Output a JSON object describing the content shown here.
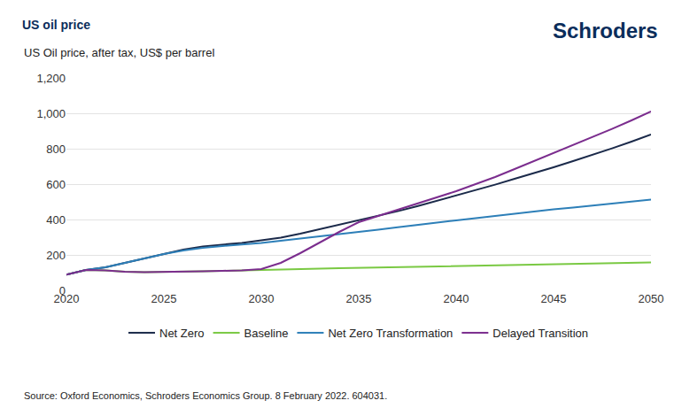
{
  "chart_data": {
    "type": "line",
    "title": "US oil price",
    "subtitle": "US Oil price, after tax, US$ per barrel",
    "brand": "Schroders",
    "source": "Source: Oxford Economics, Schroders Economics Group. 8 February 2022. 604031.",
    "x": [
      2020,
      2021,
      2022,
      2023,
      2024,
      2025,
      2026,
      2027,
      2028,
      2029,
      2030,
      2031,
      2032,
      2033,
      2034,
      2035,
      2036,
      2037,
      2038,
      2039,
      2040,
      2041,
      2042,
      2043,
      2044,
      2045,
      2046,
      2047,
      2048,
      2049,
      2050
    ],
    "xlim": [
      2020,
      2050
    ],
    "xticks": [
      2020,
      2025,
      2030,
      2035,
      2040,
      2045,
      2050
    ],
    "ylim": [
      0,
      1200
    ],
    "yticks": [
      0,
      200,
      400,
      600,
      800,
      {
        "value": 1000,
        "label": "1,000"
      },
      {
        "value": 1200,
        "label": "1,200"
      }
    ],
    "grid": true,
    "legend": "bottom",
    "series": [
      {
        "name": "Net Zero",
        "color": "#1b2a4a",
        "values": [
          88,
          115,
          130,
          155,
          180,
          208,
          230,
          248,
          258,
          268,
          282,
          298,
          320,
          345,
          370,
          395,
          420,
          447,
          475,
          505,
          535,
          565,
          597,
          630,
          662,
          695,
          730,
          765,
          802,
          840,
          880
        ]
      },
      {
        "name": "Baseline",
        "color": "#7ac943",
        "values": [
          88,
          115,
          113,
          105,
          102,
          103,
          105,
          107,
          110,
          113,
          117,
          119,
          121,
          123,
          125,
          127,
          129,
          131,
          133,
          135,
          137,
          139,
          141,
          143,
          145,
          147,
          149,
          151,
          153,
          155,
          157
        ]
      },
      {
        "name": "Net Zero Transformation",
        "color": "#2d7fb8",
        "values": [
          88,
          115,
          130,
          155,
          180,
          205,
          225,
          240,
          250,
          258,
          268,
          280,
          292,
          305,
          317,
          330,
          343,
          356,
          370,
          383,
          395,
          407,
          420,
          432,
          445,
          457,
          468,
          480,
          492,
          503,
          513
        ]
      },
      {
        "name": "Delayed Transition",
        "color": "#7b2d8e",
        "values": [
          88,
          115,
          113,
          105,
          102,
          103,
          105,
          107,
          110,
          113,
          120,
          155,
          210,
          270,
          330,
          385,
          420,
          455,
          490,
          525,
          560,
          600,
          640,
          685,
          730,
          775,
          820,
          865,
          912,
          960,
          1010
        ]
      }
    ]
  }
}
